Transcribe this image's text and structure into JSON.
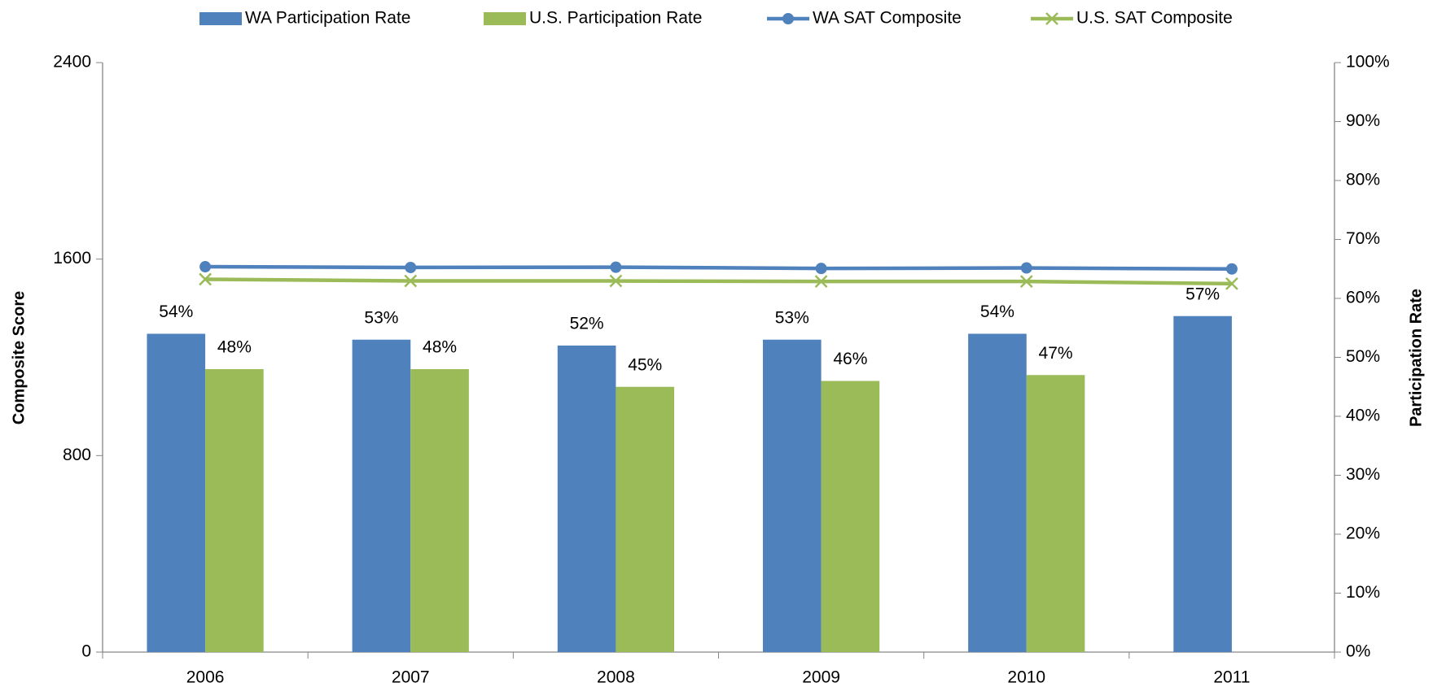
{
  "chart_data": {
    "type": "bar",
    "categories": [
      "2006",
      "2007",
      "2008",
      "2009",
      "2010",
      "2011"
    ],
    "series": [
      {
        "name": "WA Participation Rate",
        "type": "bar",
        "axis": "y2",
        "color": "#4f81bd",
        "values": [
          54,
          53,
          52,
          53,
          54,
          57
        ],
        "value_labels": [
          "54%",
          "53%",
          "52%",
          "53%",
          "54%",
          "57%"
        ]
      },
      {
        "name": "U.S. Participation Rate",
        "type": "bar",
        "axis": "y2",
        "color": "#9bbb59",
        "values": [
          48,
          48,
          45,
          46,
          47,
          null
        ],
        "value_labels": [
          "48%",
          "48%",
          "45%",
          "46%",
          "47%",
          null
        ]
      },
      {
        "name": "WA SAT Composite",
        "type": "line",
        "axis": "y",
        "marker": "circle",
        "color": "#4f81bd",
        "values": [
          1569,
          1566,
          1567,
          1562,
          1564,
          1560
        ]
      },
      {
        "name": "U.S. SAT Composite",
        "type": "line",
        "axis": "y",
        "marker": "x",
        "color": "#9bbb59",
        "values": [
          1518,
          1511,
          1511,
          1509,
          1509,
          1500
        ]
      }
    ],
    "ylabel": "Composite Score",
    "y2label": "Participation Rate",
    "ylim": [
      0,
      2400
    ],
    "yticks": [
      0,
      800,
      1600,
      2400
    ],
    "y2lim": [
      0,
      100
    ],
    "y2ticks": [
      {
        "value": 0,
        "label": "0%"
      },
      {
        "value": 10,
        "label": "10%"
      },
      {
        "value": 20,
        "label": "20%"
      },
      {
        "value": 30,
        "label": "30%"
      },
      {
        "value": 40,
        "label": "40%"
      },
      {
        "value": 50,
        "label": "50%"
      },
      {
        "value": 60,
        "label": "60%"
      },
      {
        "value": 70,
        "label": "70%"
      },
      {
        "value": 80,
        "label": "80%"
      },
      {
        "value": 90,
        "label": "90%"
      },
      {
        "value": 100,
        "label": "100%"
      }
    ],
    "legend": "top"
  }
}
